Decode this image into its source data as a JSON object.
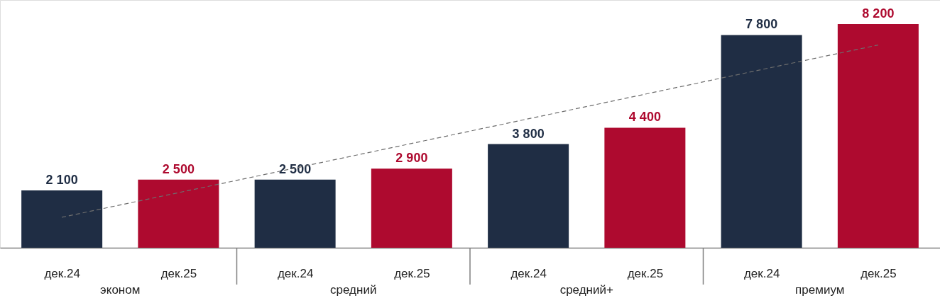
{
  "chart_data": {
    "type": "bar",
    "categories": [
      "дек.24",
      "дек.25",
      "дек.24",
      "дек.25",
      "дек.24",
      "дек.25",
      "дек.24",
      "дек.25"
    ],
    "series": [
      {
        "values": [
          2100,
          2500,
          2500,
          2900,
          3800,
          4400,
          7800,
          8200
        ],
        "colors": [
          "#1f2d44",
          "#ae0a2f",
          "#1f2d44",
          "#ae0a2f",
          "#1f2d44",
          "#ae0a2f",
          "#1f2d44",
          "#ae0a2f"
        ],
        "value_labels": [
          "2 100",
          "2 500",
          "2 500",
          "2 900",
          "3 800",
          "4 400",
          "7 800",
          "8 200"
        ]
      },
      {
        "type": "line",
        "color": "#6e6e6e",
        "line_style": "dashed",
        "values": [
          1117,
          null,
          null,
          null,
          null,
          null,
          null,
          7433
        ]
      }
    ],
    "annotations": [
      "эконом",
      "средний",
      "средний+",
      "премиум"
    ],
    "tick_labels": "x",
    "grid": false
  }
}
